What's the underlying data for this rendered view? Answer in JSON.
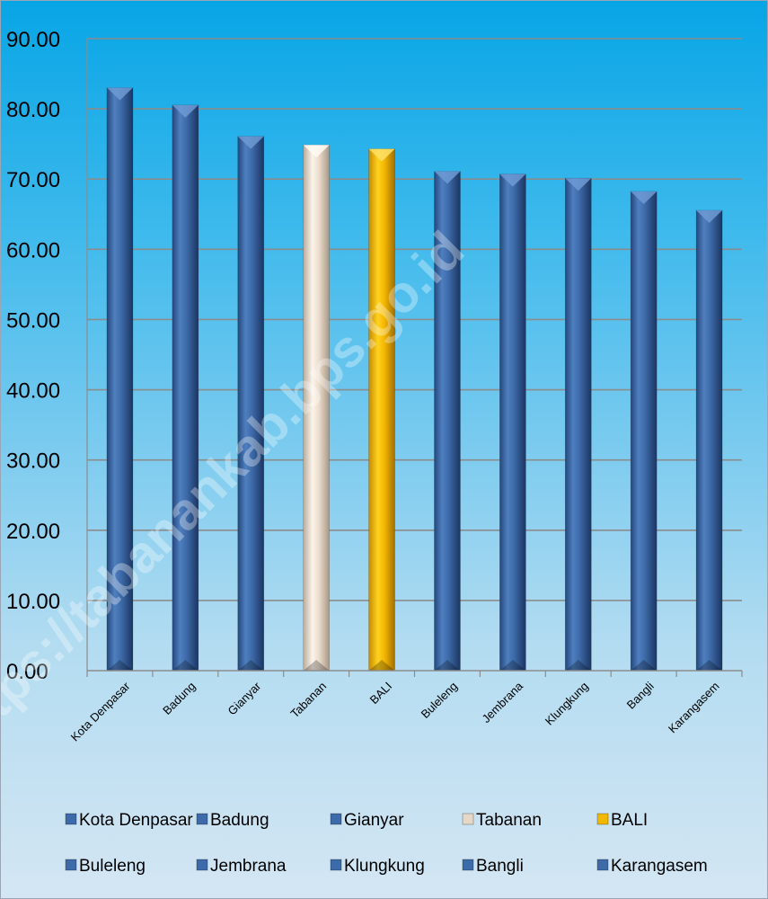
{
  "chart_data": {
    "type": "bar",
    "categories": [
      "Kota Denpasar",
      "Badung",
      "Gianyar",
      "Tabanan",
      "BALI",
      "Buleleng",
      "Jembrana",
      "Klungkung",
      "Bangli",
      "Karangasem"
    ],
    "values": [
      83.02,
      80.54,
      76.09,
      74.86,
      74.3,
      71.11,
      70.72,
      70.13,
      68.24,
      65.55
    ],
    "ylim": [
      0,
      90
    ],
    "yticks": [
      "0.00",
      "10.00",
      "20.00",
      "30.00",
      "40.00",
      "50.00",
      "60.00",
      "70.00",
      "80.00",
      "90.00"
    ],
    "grid": true,
    "legend_position": "bottom",
    "colors": {
      "default": "#3d6aa8",
      "Tabanan": "#ece0d2",
      "BALI": "#f2b800"
    },
    "watermark": "https://tabanankab.bps.go.id"
  }
}
